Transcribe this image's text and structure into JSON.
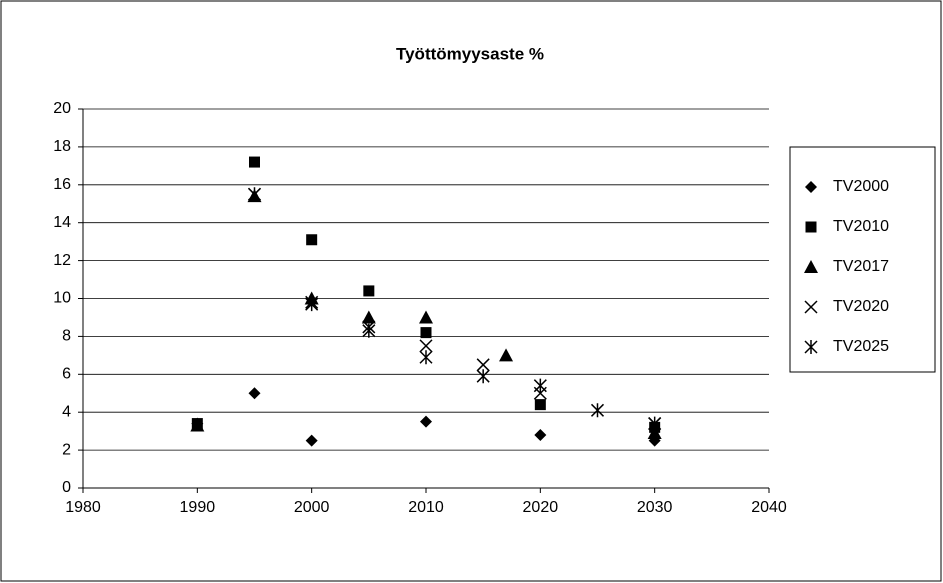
{
  "chart_data": {
    "type": "scatter",
    "title": "Työttömyysaste %",
    "xlim": [
      1980,
      2040
    ],
    "xticks": [
      1980,
      1990,
      2000,
      2010,
      2020,
      2030,
      2040
    ],
    "ylim": [
      0,
      20
    ],
    "yticks": [
      0,
      2,
      4,
      6,
      8,
      10,
      12,
      14,
      16,
      18,
      20
    ],
    "grid": true,
    "legend": "right",
    "series": [
      {
        "name": "TV2000",
        "color": "#000000",
        "marker": "diamond",
        "x": [
          1990,
          1995,
          2000,
          2010,
          2020,
          2030
        ],
        "values": [
          3.4,
          5.0,
          2.5,
          3.5,
          2.8,
          2.5
        ]
      },
      {
        "name": "TV2010",
        "color": "#000000",
        "marker": "square",
        "x": [
          1990,
          1995,
          2000,
          2005,
          2010,
          2020,
          2030
        ],
        "values": [
          3.4,
          17.2,
          13.1,
          10.4,
          8.2,
          4.4,
          3.2
        ]
      },
      {
        "name": "TV2017",
        "color": "#000000",
        "marker": "triangle",
        "x": [
          1990,
          1995,
          2000,
          2005,
          2010,
          2017,
          2030
        ],
        "values": [
          3.3,
          15.4,
          10.0,
          9.0,
          9.0,
          7.0,
          2.9
        ]
      },
      {
        "name": "TV2020",
        "color": "#000000",
        "marker": "x",
        "x": [
          1995,
          2000,
          2005,
          2010,
          2015,
          2020,
          2030
        ],
        "values": [
          15.5,
          9.8,
          8.5,
          7.5,
          6.5,
          5.0,
          3.4
        ]
      },
      {
        "name": "TV2025",
        "color": "#000000",
        "marker": "asterisk",
        "x": [
          1995,
          2000,
          2005,
          2010,
          2015,
          2020,
          2025,
          2030
        ],
        "values": [
          15.5,
          9.7,
          8.3,
          6.9,
          5.9,
          5.4,
          4.1,
          3.4
        ]
      }
    ]
  }
}
